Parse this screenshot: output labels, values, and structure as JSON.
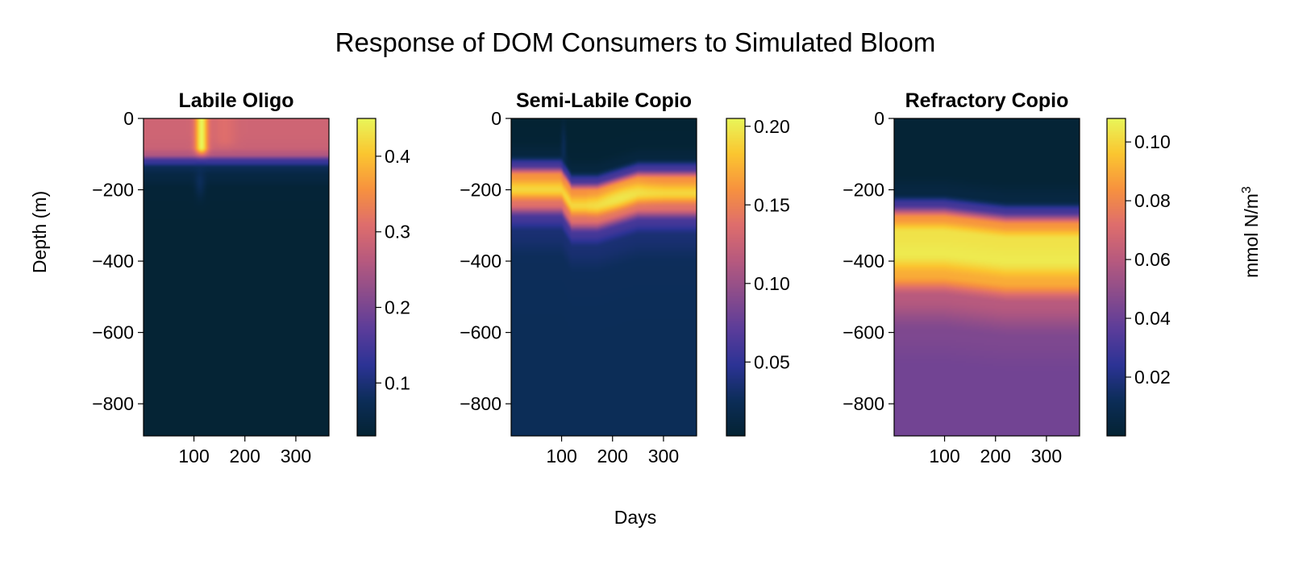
{
  "chart_data": {
    "type": "heatmap",
    "title": "Response of DOM Consumers to Simulated Bloom",
    "xlabel": "Days",
    "ylabel": "Depth (m)",
    "colorbar_label": "mmol N/m",
    "colorbar_label_superscript": "3",
    "colormap": [
      "#042333",
      "#0c2d58",
      "#2c3395",
      "#5a3c9a",
      "#8a4c8c",
      "#b85a7e",
      "#df6e6c",
      "#f7923f",
      "#fbc630",
      "#e9f65a"
    ],
    "panels": [
      {
        "title": "Labile Oligo",
        "xlim": [
          1,
          365
        ],
        "ylim": [
          -890,
          0
        ],
        "x_ticks": [
          "100",
          "200",
          "300"
        ],
        "y_ticks": [
          "0",
          "−200",
          "−400",
          "−600",
          "−800"
        ],
        "vmin": 0.03,
        "vmax": 0.45,
        "colorbar_ticks": [
          "0.1",
          "0.2",
          "0.3",
          "0.4"
        ],
        "colorbar_tick_values": [
          0.1,
          0.2,
          0.3,
          0.4
        ],
        "profile_depths": [
          0,
          -40,
          -80,
          -100,
          -120,
          -140,
          -160,
          -200,
          -300,
          -500,
          -890
        ],
        "profile_values": [
          0.29,
          0.29,
          0.285,
          0.26,
          0.14,
          0.07,
          0.05,
          0.035,
          0.033,
          0.033,
          0.033
        ],
        "bloom": {
          "day": 115,
          "width_days": 12,
          "depth_max": -80,
          "peak_value": 0.45
        },
        "bloom_secondary": {
          "day": 160,
          "width_days": 22,
          "depth_max": -60,
          "peak_value": 0.33
        }
      },
      {
        "title": "Semi-Labile Copio",
        "xlim": [
          1,
          365
        ],
        "ylim": [
          -890,
          0
        ],
        "x_ticks": [
          "100",
          "200",
          "300"
        ],
        "y_ticks": [
          "0",
          "−200",
          "−400",
          "−600",
          "−800"
        ],
        "vmin": 0.003,
        "vmax": 0.205,
        "colorbar_ticks": [
          "0.05",
          "0.10",
          "0.15",
          "0.20"
        ],
        "colorbar_tick_values": [
          0.05,
          0.1,
          0.15,
          0.2
        ],
        "profile_depths": [
          0,
          -60,
          -100,
          -130,
          -160,
          -200,
          -240,
          -280,
          -320,
          -400,
          -600,
          -890
        ],
        "profile_values": [
          0.003,
          0.004,
          0.01,
          0.06,
          0.16,
          0.19,
          0.14,
          0.06,
          0.035,
          0.026,
          0.025,
          0.025
        ],
        "shift": {
          "start_day": 100,
          "depth_offset": -45,
          "recover_day": 230,
          "recover_offset": -10
        }
      },
      {
        "title": "Refractory Copio",
        "xlim": [
          1,
          365
        ],
        "ylim": [
          -890,
          0
        ],
        "x_ticks": [
          "100",
          "200",
          "300"
        ],
        "y_ticks": [
          "0",
          "−200",
          "−400",
          "−600",
          "−800"
        ],
        "vmin": 0.0,
        "vmax": 0.108,
        "colorbar_ticks": [
          "0.02",
          "0.04",
          "0.06",
          "0.08",
          "0.10"
        ],
        "colorbar_tick_values": [
          0.02,
          0.04,
          0.06,
          0.08,
          0.1
        ],
        "profile_depths": [
          0,
          -150,
          -210,
          -240,
          -280,
          -320,
          -380,
          -440,
          -500,
          -600,
          -700,
          -890
        ],
        "profile_values": [
          0.001,
          0.001,
          0.005,
          0.03,
          0.085,
          0.103,
          0.105,
          0.09,
          0.06,
          0.045,
          0.042,
          0.042
        ]
      }
    ]
  }
}
